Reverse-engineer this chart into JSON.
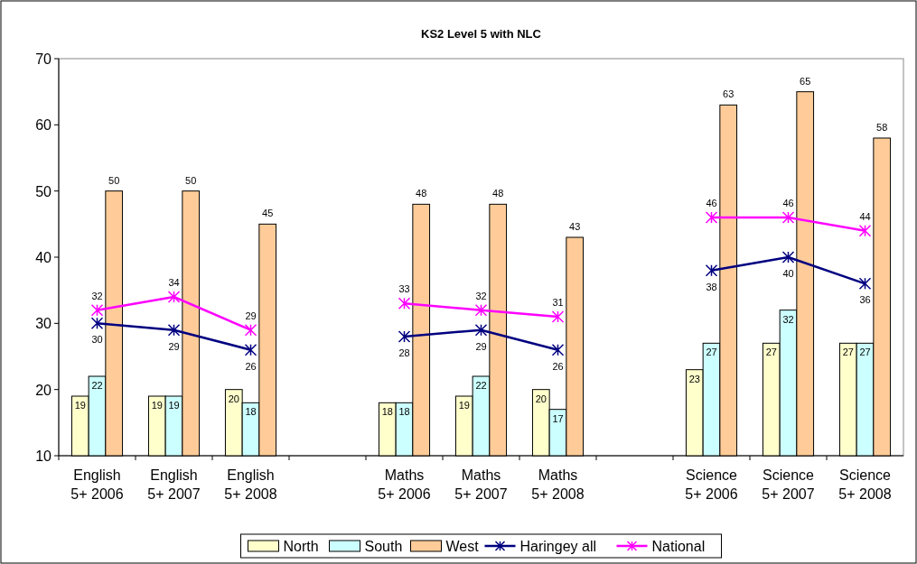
{
  "chart_data": {
    "type": "bar",
    "title": "KS2 Level 5 with NLC",
    "categories": [
      "English 5+ 2006",
      "English 5+ 2007",
      "English 5+ 2008",
      null,
      "Maths 5+ 2006",
      "Maths 5+ 2007",
      "Maths 5+ 2008",
      null,
      "Science 5+ 2006",
      "Science 5+ 2007",
      "Science 5+ 2008"
    ],
    "series": [
      {
        "name": "North",
        "color": "#ffffcc",
        "values": [
          19,
          19,
          20,
          null,
          18,
          19,
          20,
          null,
          23,
          27,
          27
        ]
      },
      {
        "name": "South",
        "color": "#ccffff",
        "values": [
          22,
          19,
          18,
          null,
          18,
          22,
          17,
          null,
          27,
          32,
          27
        ]
      },
      {
        "name": "West",
        "color": "#ffcc99",
        "values": [
          50,
          50,
          45,
          null,
          48,
          48,
          43,
          null,
          63,
          65,
          58
        ]
      },
      {
        "name": "Haringey all",
        "type": "line",
        "color": "#000080",
        "marker": "cross",
        "values": [
          30,
          29,
          26,
          null,
          28,
          29,
          26,
          null,
          38,
          40,
          36
        ]
      },
      {
        "name": "National",
        "type": "line",
        "color": "#ff00ff",
        "marker": "cross",
        "values": [
          32,
          34,
          29,
          null,
          33,
          32,
          31,
          null,
          46,
          46,
          44
        ]
      }
    ],
    "ylim": [
      10,
      70
    ],
    "yticks": [
      10,
      20,
      30,
      40,
      50,
      60,
      70
    ],
    "grid": false,
    "legend": "bottom",
    "data_labels": true
  }
}
